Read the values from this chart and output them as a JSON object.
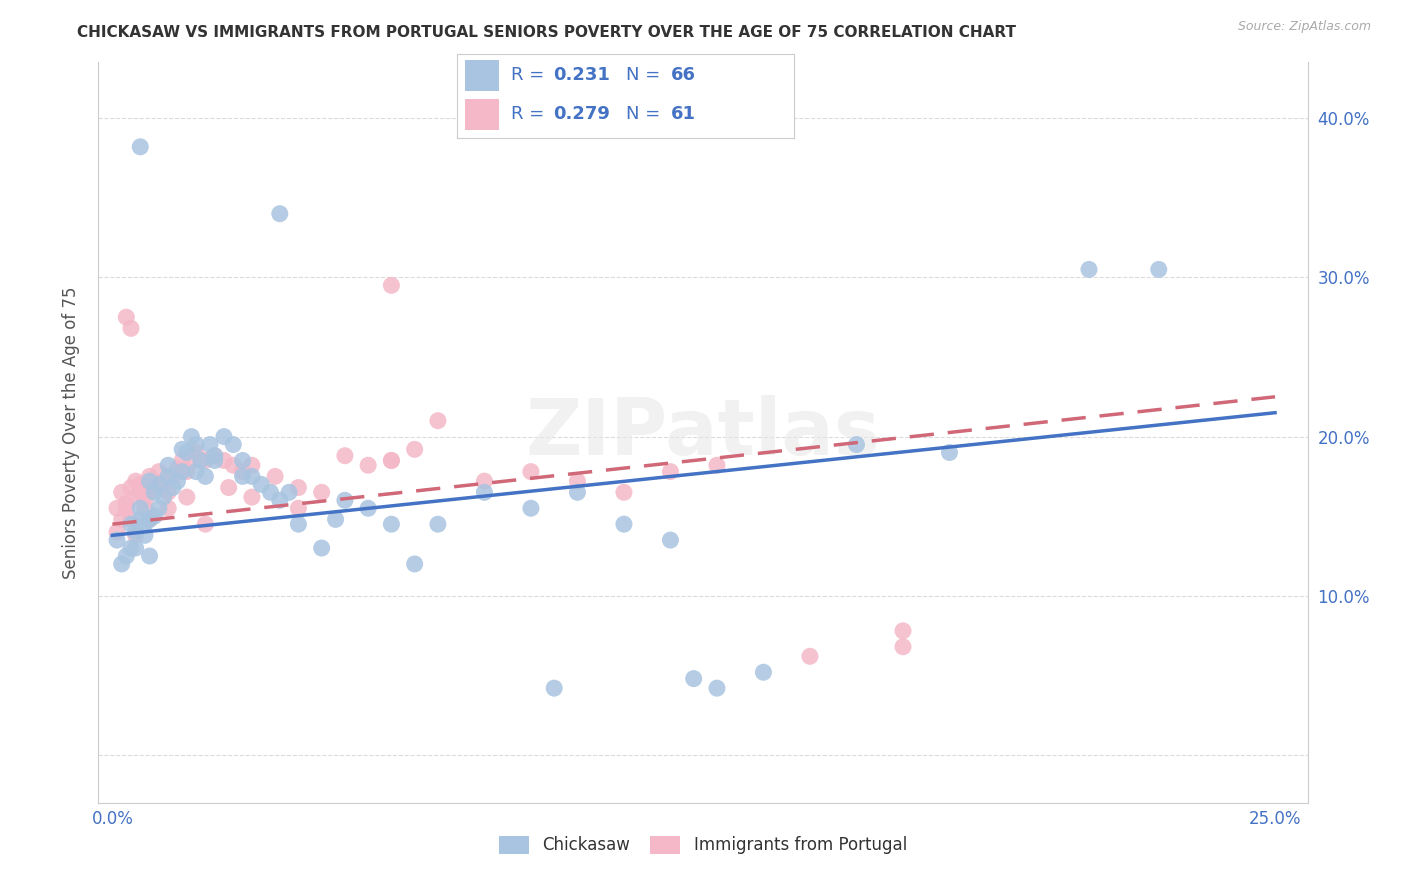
{
  "title": "CHICKASAW VS IMMIGRANTS FROM PORTUGAL SENIORS POVERTY OVER THE AGE OF 75 CORRELATION CHART",
  "source": "Source: ZipAtlas.com",
  "ylabel": "Seniors Poverty Over the Age of 75",
  "xlim": [
    -0.003,
    0.257
  ],
  "ylim": [
    -0.03,
    0.435
  ],
  "xticks": [
    0.0,
    0.05,
    0.1,
    0.15,
    0.2,
    0.25
  ],
  "xtick_labels": [
    "0.0%",
    "",
    "",
    "",
    "",
    "25.0%"
  ],
  "yticks": [
    0.0,
    0.1,
    0.2,
    0.3,
    0.4
  ],
  "ytick_labels_right": [
    "",
    "10.0%",
    "20.0%",
    "30.0%",
    "40.0%"
  ],
  "blue_R": "0.231",
  "blue_N": "66",
  "pink_R": "0.279",
  "pink_N": "61",
  "blue_scatter_color": "#a8c4e0",
  "pink_scatter_color": "#f4b8c8",
  "blue_line_color": "#4472c4",
  "pink_line_color": "#d06878",
  "axis_tick_color": "#4472c4",
  "title_color": "#333333",
  "source_color": "#aaaaaa",
  "grid_color": "#d8d8d8",
  "legend_text_color": "#4472c4",
  "legend_border_color": "#cccccc",
  "watermark_color": "#e8e8e8",
  "blue_scatter_x": [
    0.001,
    0.002,
    0.003,
    0.004,
    0.004,
    0.005,
    0.005,
    0.006,
    0.006,
    0.007,
    0.007,
    0.008,
    0.008,
    0.009,
    0.009,
    0.01,
    0.01,
    0.011,
    0.012,
    0.013,
    0.014,
    0.015,
    0.016,
    0.017,
    0.018,
    0.019,
    0.02,
    0.021,
    0.022,
    0.024,
    0.026,
    0.028,
    0.03,
    0.032,
    0.034,
    0.036,
    0.04,
    0.045,
    0.05,
    0.055,
    0.06,
    0.065,
    0.07,
    0.08,
    0.09,
    0.1,
    0.11,
    0.12,
    0.13,
    0.14,
    0.006,
    0.036,
    0.095,
    0.125,
    0.16,
    0.18,
    0.21,
    0.225,
    0.008,
    0.012,
    0.015,
    0.018,
    0.022,
    0.028,
    0.038,
    0.048
  ],
  "blue_scatter_y": [
    0.135,
    0.12,
    0.125,
    0.13,
    0.145,
    0.13,
    0.14,
    0.155,
    0.148,
    0.145,
    0.138,
    0.125,
    0.148,
    0.15,
    0.165,
    0.155,
    0.17,
    0.162,
    0.175,
    0.168,
    0.172,
    0.178,
    0.19,
    0.2,
    0.195,
    0.185,
    0.175,
    0.195,
    0.185,
    0.2,
    0.195,
    0.185,
    0.175,
    0.17,
    0.165,
    0.16,
    0.145,
    0.13,
    0.16,
    0.155,
    0.145,
    0.12,
    0.145,
    0.165,
    0.155,
    0.165,
    0.145,
    0.135,
    0.042,
    0.052,
    0.382,
    0.34,
    0.042,
    0.048,
    0.195,
    0.19,
    0.305,
    0.305,
    0.172,
    0.182,
    0.192,
    0.178,
    0.188,
    0.175,
    0.165,
    0.148
  ],
  "pink_scatter_x": [
    0.001,
    0.001,
    0.002,
    0.002,
    0.003,
    0.003,
    0.004,
    0.004,
    0.005,
    0.005,
    0.006,
    0.006,
    0.007,
    0.007,
    0.008,
    0.008,
    0.009,
    0.01,
    0.011,
    0.012,
    0.013,
    0.014,
    0.015,
    0.016,
    0.017,
    0.018,
    0.02,
    0.022,
    0.024,
    0.026,
    0.028,
    0.03,
    0.035,
    0.04,
    0.045,
    0.05,
    0.055,
    0.06,
    0.065,
    0.07,
    0.08,
    0.09,
    0.1,
    0.11,
    0.12,
    0.13,
    0.15,
    0.17,
    0.003,
    0.004,
    0.06,
    0.17,
    0.005,
    0.008,
    0.012,
    0.016,
    0.02,
    0.025,
    0.03,
    0.04,
    0.06
  ],
  "pink_scatter_y": [
    0.14,
    0.155,
    0.148,
    0.165,
    0.158,
    0.155,
    0.148,
    0.168,
    0.162,
    0.172,
    0.17,
    0.165,
    0.16,
    0.155,
    0.165,
    0.175,
    0.168,
    0.178,
    0.172,
    0.165,
    0.175,
    0.18,
    0.185,
    0.178,
    0.185,
    0.19,
    0.185,
    0.188,
    0.185,
    0.182,
    0.178,
    0.182,
    0.175,
    0.168,
    0.165,
    0.188,
    0.182,
    0.185,
    0.192,
    0.21,
    0.172,
    0.178,
    0.172,
    0.165,
    0.178,
    0.182,
    0.062,
    0.078,
    0.275,
    0.268,
    0.295,
    0.068,
    0.138,
    0.148,
    0.155,
    0.162,
    0.145,
    0.168,
    0.162,
    0.155,
    0.185
  ]
}
